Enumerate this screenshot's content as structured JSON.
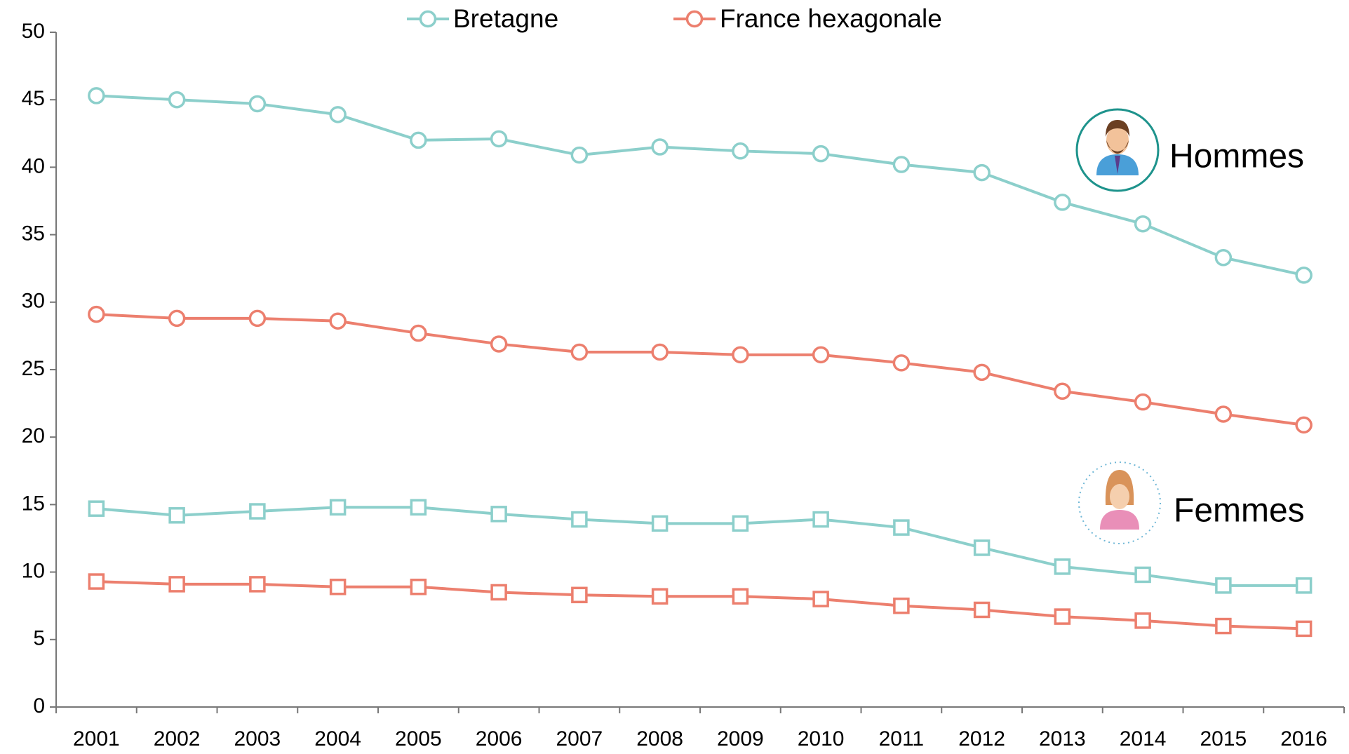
{
  "chart_data": {
    "type": "line",
    "categories": [
      "2001",
      "2002",
      "2003",
      "2004",
      "2005",
      "2006",
      "2007",
      "2008",
      "2009",
      "2010",
      "2011",
      "2012",
      "2013",
      "2014",
      "2015",
      "2016"
    ],
    "groups": [
      {
        "label": "Hommes",
        "marker": "circle",
        "series": [
          {
            "name": "Bretagne",
            "color": "#8ccfcb",
            "values": [
              45.3,
              45.0,
              44.7,
              43.9,
              42.0,
              42.1,
              40.9,
              41.5,
              41.2,
              41.0,
              40.2,
              39.6,
              37.4,
              35.8,
              33.3,
              32.0
            ]
          },
          {
            "name": "France hexagonale",
            "color": "#ec7f6e",
            "values": [
              29.1,
              28.8,
              28.8,
              28.6,
              27.7,
              26.9,
              26.3,
              26.3,
              26.1,
              26.1,
              25.5,
              24.8,
              23.4,
              22.6,
              21.7,
              20.9
            ]
          }
        ]
      },
      {
        "label": "Femmes",
        "marker": "square",
        "series": [
          {
            "name": "Bretagne",
            "color": "#8ccfcb",
            "values": [
              14.7,
              14.2,
              14.5,
              14.8,
              14.8,
              14.3,
              13.9,
              13.6,
              13.6,
              13.9,
              13.3,
              11.8,
              10.4,
              9.8,
              9.0,
              9.0
            ]
          },
          {
            "name": "France hexagonale",
            "color": "#ec7f6e",
            "values": [
              9.3,
              9.1,
              9.1,
              8.9,
              8.9,
              8.5,
              8.3,
              8.2,
              8.2,
              8.0,
              7.5,
              7.2,
              6.7,
              6.4,
              6.0,
              5.8
            ]
          }
        ]
      }
    ],
    "ylim": [
      0,
      50
    ],
    "yticks": [
      0,
      5,
      10,
      15,
      20,
      25,
      30,
      35,
      40,
      45,
      50
    ]
  }
}
